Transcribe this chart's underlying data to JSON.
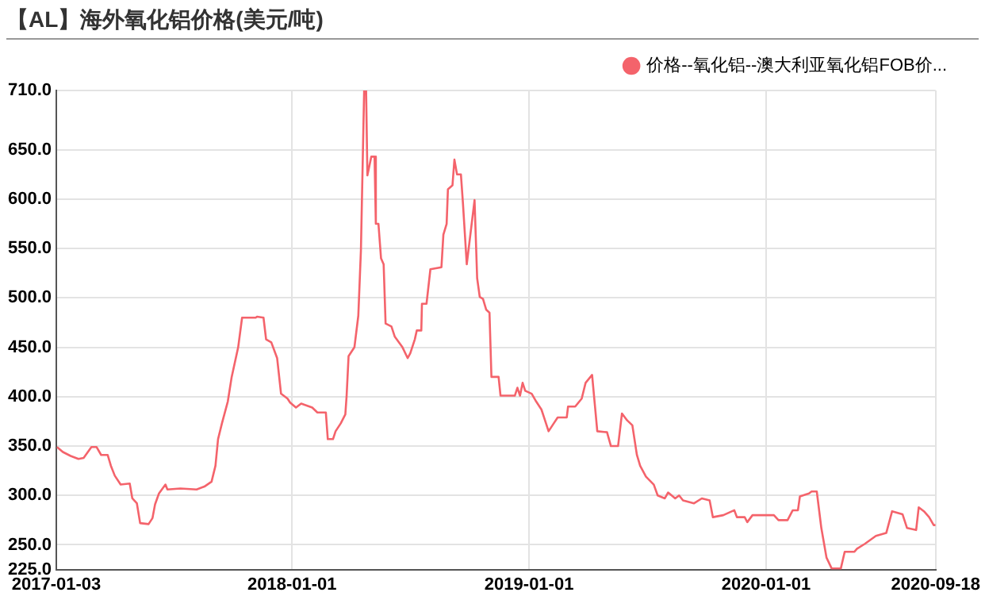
{
  "chart_data": {
    "type": "line",
    "title": "【AL】海外氧化铝价格(美元/吨)",
    "xlim": [
      "2017-01-03",
      "2020-09-18"
    ],
    "xticks": [
      "2017-01-03",
      "2018-01-01",
      "2019-01-01",
      "2020-01-01",
      "2020-09-18"
    ],
    "ylim": [
      225,
      710
    ],
    "yticks": [
      {
        "value": 225,
        "label": "225.0"
      },
      {
        "value": 250,
        "label": "250.0"
      },
      {
        "value": 300,
        "label": "300.0"
      },
      {
        "value": 350,
        "label": "350.0"
      },
      {
        "value": 400,
        "label": "400.0"
      },
      {
        "value": 450,
        "label": "450.0"
      },
      {
        "value": 500,
        "label": "500.0"
      },
      {
        "value": 550,
        "label": "550.0"
      },
      {
        "value": 600,
        "label": "600.0"
      },
      {
        "value": 650,
        "label": "650.0"
      },
      {
        "value": 710,
        "label": "710.0"
      }
    ],
    "grid": true,
    "legend": "top right",
    "marker": "none",
    "line_style": "solid",
    "series": [
      {
        "name": "价格--氧化铝--澳大利亚氧化铝FOB价...",
        "color": "#f4636b",
        "x": [
          "2017-01-04",
          "2017-01-13",
          "2017-01-25",
          "2017-02-06",
          "2017-02-14",
          "2017-02-26",
          "2017-03-06",
          "2017-03-13",
          "2017-03-23",
          "2017-03-28",
          "2017-04-03",
          "2017-04-12",
          "2017-04-26",
          "2017-04-30",
          "2017-05-07",
          "2017-05-12",
          "2017-05-25",
          "2017-05-31",
          "2017-06-04",
          "2017-06-10",
          "2017-06-20",
          "2017-06-23",
          "2017-07-13",
          "2017-08-07",
          "2017-08-19",
          "2017-08-30",
          "2017-09-05",
          "2017-09-09",
          "2017-09-15",
          "2017-09-24",
          "2017-09-30",
          "2017-10-10",
          "2017-10-16",
          "2017-11-06",
          "2017-11-08",
          "2017-11-18",
          "2017-11-22",
          "2017-11-30",
          "2017-12-09",
          "2017-12-15",
          "2017-12-25",
          "2017-12-29",
          "2018-01-07",
          "2018-01-15",
          "2018-02-01",
          "2018-02-09",
          "2018-02-22",
          "2018-02-25",
          "2018-03-05",
          "2018-03-09",
          "2018-03-17",
          "2018-03-24",
          "2018-03-26",
          "2018-03-29",
          "2018-04-07",
          "2018-04-13",
          "2018-04-17",
          "2018-04-22",
          "2018-04-25",
          "2018-04-27",
          "2018-05-03",
          "2018-05-08",
          "2018-05-10",
          "2018-05-14",
          "2018-05-18",
          "2018-05-22",
          "2018-05-25",
          "2018-06-03",
          "2018-06-08",
          "2018-06-20",
          "2018-06-28",
          "2018-07-02",
          "2018-07-09",
          "2018-07-12",
          "2018-07-19",
          "2018-07-20",
          "2018-07-27",
          "2018-08-02",
          "2018-08-19",
          "2018-08-22",
          "2018-08-27",
          "2018-08-29",
          "2018-09-05",
          "2018-09-08",
          "2018-09-12",
          "2018-09-18",
          "2018-09-21",
          "2018-09-27",
          "2018-10-09",
          "2018-10-13",
          "2018-10-17",
          "2018-10-22",
          "2018-10-27",
          "2018-11-01",
          "2018-11-04",
          "2018-11-15",
          "2018-11-18",
          "2018-12-10",
          "2018-12-14",
          "2018-12-18",
          "2018-12-22",
          "2018-12-26",
          "2019-01-05",
          "2019-01-12",
          "2019-01-20",
          "2019-01-24",
          "2019-01-31",
          "2019-02-08",
          "2019-02-14",
          "2019-02-28",
          "2019-03-02",
          "2019-03-13",
          "2019-03-23",
          "2019-03-29",
          "2019-04-08",
          "2019-04-16",
          "2019-05-01",
          "2019-05-07",
          "2019-05-18",
          "2019-05-24",
          "2019-06-01",
          "2019-06-09",
          "2019-06-16",
          "2019-06-21",
          "2019-06-30",
          "2019-07-12",
          "2019-07-18",
          "2019-07-29",
          "2019-08-03",
          "2019-08-14",
          "2019-08-20",
          "2019-08-26",
          "2019-09-12",
          "2019-09-24",
          "2019-10-06",
          "2019-10-11",
          "2019-10-27",
          "2019-11-13",
          "2019-11-17",
          "2019-11-29",
          "2019-12-03",
          "2019-12-11",
          "2020-01-13",
          "2020-01-20",
          "2020-02-03",
          "2020-02-11",
          "2020-02-19",
          "2020-02-22",
          "2020-03-07",
          "2020-03-11",
          "2020-03-19",
          "2020-03-26",
          "2020-04-03",
          "2020-04-11",
          "2020-04-25",
          "2020-05-01",
          "2020-05-16",
          "2020-05-20",
          "2020-06-01",
          "2020-06-18",
          "2020-07-04",
          "2020-07-13",
          "2020-07-29",
          "2020-08-05",
          "2020-08-19",
          "2020-08-23",
          "2020-08-31",
          "2020-09-08",
          "2020-09-15",
          "2020-09-18"
        ],
        "values": [
          349,
          344,
          340,
          337,
          338,
          349,
          349,
          341,
          341,
          330,
          320,
          311,
          312,
          297,
          292,
          272,
          271,
          277,
          291,
          302,
          311,
          306,
          307,
          306,
          309,
          314,
          330,
          357,
          373,
          395,
          420,
          450,
          480,
          480,
          481,
          480,
          458,
          455,
          439,
          403,
          398,
          394,
          389,
          393,
          389,
          384,
          384,
          357,
          357,
          365,
          373,
          382,
          401,
          441,
          450,
          482,
          548,
          710,
          710,
          624,
          643,
          643,
          575,
          575,
          540,
          534,
          474,
          471,
          461,
          450,
          439,
          444,
          458,
          467,
          467,
          494,
          494,
          529,
          531,
          564,
          575,
          610,
          614,
          640,
          625,
          625,
          597,
          534,
          599,
          520,
          501,
          499,
          488,
          485,
          420,
          420,
          401,
          401,
          409,
          401,
          414,
          406,
          403,
          395,
          387,
          379,
          365,
          373,
          379,
          379,
          390,
          390,
          398,
          414,
          422,
          365,
          364,
          350,
          350,
          383,
          376,
          371,
          341,
          330,
          319,
          311,
          300,
          297,
          303,
          297,
          300,
          295,
          292,
          297,
          295,
          278,
          280,
          285,
          278,
          278,
          273,
          280,
          280,
          275,
          275,
          285,
          285,
          299,
          302,
          304,
          304,
          267,
          237,
          226,
          226,
          243,
          243,
          246,
          251,
          259,
          262,
          284,
          281,
          267,
          265,
          288,
          284,
          278,
          270,
          270
        ]
      }
    ]
  }
}
